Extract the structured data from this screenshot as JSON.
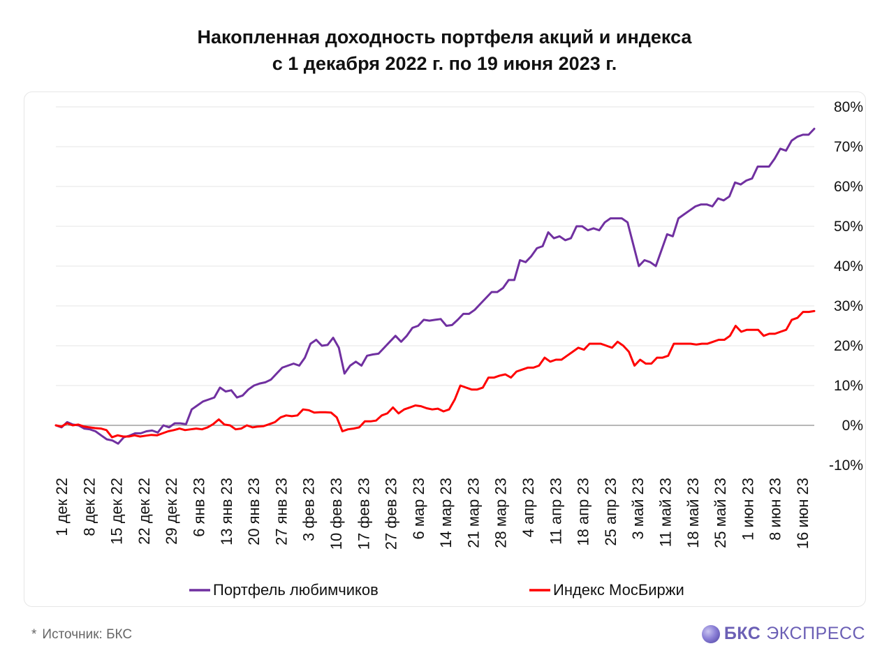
{
  "title_line1": "Накопленная доходность портфеля акций и индекса",
  "title_line2": "с 1 декабря 2022 г. по 19 июня 2023 г.",
  "source_star": "*",
  "source": "Источник: БКС",
  "brand_bold": "БКС",
  "brand_rest": "ЭКСПРЕСС",
  "chart_data": {
    "type": "line",
    "ylim": [
      -10,
      80
    ],
    "yticks": [
      -10,
      0,
      10,
      20,
      30,
      40,
      50,
      60,
      70,
      80
    ],
    "ytick_labels": [
      "-10%",
      "0%",
      "10%",
      "20%",
      "30%",
      "40%",
      "50%",
      "60%",
      "70%",
      "80%"
    ],
    "xtick_labels": [
      "1 дек 22",
      "8 дек 22",
      "15 дек 22",
      "22 дек 22",
      "29 дек 22",
      "6 янв 23",
      "13 янв 23",
      "20 янв 23",
      "27 янв 23",
      "3 фев 23",
      "10 фев 23",
      "17 фев 23",
      "27 фев 23",
      "6 мар 23",
      "14 мар 23",
      "21 мар 23",
      "28 мар 23",
      "4 апр 23",
      "11 апр 23",
      "18 апр 23",
      "25 апр 23",
      "3 май 23",
      "11 май 23",
      "18 май 23",
      "25 май 23",
      "1 июн 23",
      "8 июн 23",
      "16 июн 23"
    ],
    "grid": true,
    "legend": "bottom",
    "colors": [
      "#7030a0",
      "#ff0000"
    ],
    "series": [
      {
        "name": "Портфель любимчиков",
        "color": "#7030a0",
        "values": [
          0,
          -0.5,
          0.8,
          0.2,
          0,
          -0.8,
          -1,
          -1.5,
          -2.5,
          -3.5,
          -3.8,
          -4.6,
          -3.0,
          -2.6,
          -2.0,
          -2.0,
          -1.5,
          -1.3,
          -1.8,
          0,
          -0.5,
          0.5,
          0.5,
          0.3,
          4.0,
          5.0,
          6.0,
          6.5,
          7.0,
          9.5,
          8.5,
          8.8,
          7.0,
          7.5,
          9.0,
          10.0,
          10.5,
          10.8,
          11.5,
          13.0,
          14.5,
          15.0,
          15.5,
          15.0,
          17.0,
          20.5,
          21.5,
          20.0,
          20.2,
          22.0,
          19.5,
          13.0,
          15.0,
          16.0,
          15.0,
          17.5,
          17.8,
          18.0,
          19.5,
          21.0,
          22.5,
          21.0,
          22.5,
          24.5,
          25.0,
          26.5,
          26.3,
          26.5,
          26.7,
          25.0,
          25.2,
          26.5,
          28.0,
          28.0,
          29.0,
          30.5,
          32.0,
          33.5,
          33.5,
          34.5,
          36.5,
          36.5,
          41.5,
          41.0,
          42.5,
          44.5,
          45.0,
          48.5,
          47.0,
          47.5,
          46.5,
          47.0,
          50.0,
          50.0,
          49.0,
          49.5,
          49.0,
          51.0,
          52.0,
          52.0,
          52.0,
          51.0,
          45.5,
          40.0,
          41.5,
          41.0,
          40.0,
          44.0,
          48.0,
          47.5,
          52.0,
          53.0,
          54.0,
          55.0,
          55.5,
          55.5,
          55.0,
          57.0,
          56.5,
          57.5,
          61.0,
          60.5,
          61.5,
          62.0,
          65.0,
          65.0,
          65.0,
          67.0,
          69.5,
          69.0,
          71.5,
          72.5,
          73.0,
          73.0,
          74.5
        ]
      },
      {
        "name": "Индекс МосБиржи",
        "color": "#ff0000",
        "values": [
          0,
          -0.3,
          0.5,
          0,
          0.2,
          -0.3,
          -0.5,
          -0.7,
          -0.8,
          -1.2,
          -3.0,
          -2.5,
          -2.8,
          -2.8,
          -2.5,
          -2.8,
          -2.6,
          -2.4,
          -2.5,
          -2.0,
          -1.5,
          -1.2,
          -0.8,
          -1.2,
          -1.0,
          -0.8,
          -1.0,
          -0.5,
          0.3,
          1.5,
          0.2,
          0,
          -1.0,
          -0.8,
          0,
          -0.5,
          -0.3,
          -0.2,
          0.3,
          0.8,
          2.0,
          2.5,
          2.3,
          2.5,
          4.0,
          3.8,
          3.2,
          3.3,
          3.3,
          3.2,
          2.0,
          -1.5,
          -1.0,
          -0.8,
          -0.5,
          1.0,
          1.0,
          1.2,
          2.5,
          3.0,
          4.5,
          3.0,
          4.0,
          4.5,
          5.0,
          4.8,
          4.3,
          4.0,
          4.2,
          3.5,
          4.0,
          6.5,
          10.0,
          9.5,
          9.0,
          9.0,
          9.5,
          12.0,
          12.0,
          12.5,
          12.8,
          12.0,
          13.5,
          14.0,
          14.5,
          14.5,
          15.0,
          17.0,
          16.0,
          16.5,
          16.5,
          17.5,
          18.5,
          19.5,
          19.0,
          20.5,
          20.5,
          20.5,
          20.0,
          19.5,
          21.0,
          20.0,
          18.5,
          15.0,
          16.5,
          15.5,
          15.5,
          17.0,
          17.0,
          17.5,
          20.5,
          20.5,
          20.5,
          20.5,
          20.3,
          20.5,
          20.5,
          21.0,
          21.5,
          21.5,
          22.5,
          25.0,
          23.5,
          24.0,
          24.0,
          24.0,
          22.5,
          23.0,
          23.0,
          23.5,
          24.0,
          26.5,
          27.0,
          28.5,
          28.5,
          28.7
        ]
      }
    ]
  }
}
